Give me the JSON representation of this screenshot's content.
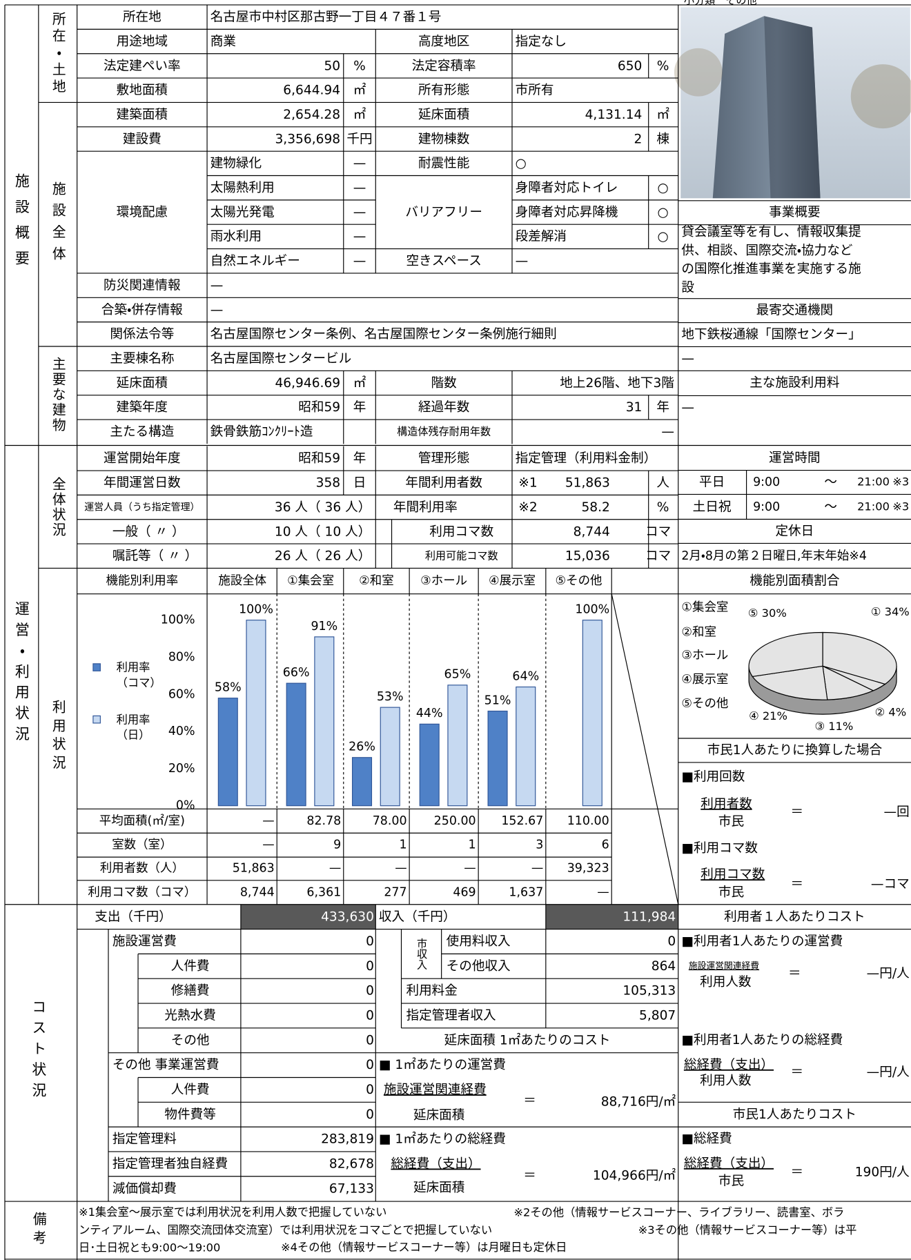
{
  "header": {
    "category": "小分類　その他"
  },
  "overview": {
    "title": "施設概要",
    "land": "所在・土地",
    "whole": "施設全体",
    "main": "主要な建物",
    "rows": [
      [
        "所在地",
        "名古屋市中村区那古野一丁目４７番１号"
      ],
      [
        "用途地域",
        "商業",
        "高度地区",
        "指定なし"
      ],
      [
        "法定建ぺい率",
        "50",
        "%",
        "法定容積率",
        "650",
        "%"
      ],
      [
        "敷地面積",
        "6,644.94",
        "㎡",
        "所有形態",
        "市所有"
      ],
      [
        "建築面積",
        "2,654.28",
        "㎡",
        "延床面積",
        "4,131.14",
        "㎡"
      ],
      [
        "建設費",
        "3,356,698",
        "千円",
        "建物棟数",
        "2",
        "棟"
      ],
      [
        "建物緑化",
        "—",
        "耐震性能",
        "○"
      ],
      [
        "太陽熱利用",
        "—",
        "身障者対応トイレ",
        "○"
      ],
      [
        "環境配慮",
        "太陽光発電",
        "—",
        "バリアフリー",
        "身障者対応昇降機",
        "○"
      ],
      [
        "雨水利用",
        "—",
        "段差解消",
        "○"
      ],
      [
        "自然エネルギー",
        "—",
        "空きスペース",
        "—"
      ],
      [
        "防災関連情報",
        "—"
      ],
      [
        "合築・併存情報",
        "—"
      ],
      [
        "関係法令等",
        "名古屋国際センター条例、名古屋国際センター条例施行細則"
      ],
      [
        "主要棟名称",
        "名古屋国際センタービル"
      ],
      [
        "延床面積",
        "46,946.69",
        "㎡",
        "階数",
        "地上26階、地下3階"
      ],
      [
        "建築年度",
        "昭和59",
        "年",
        "経過年数",
        "31",
        "年"
      ],
      [
        "主たる構造",
        "鉄骨鉄筋ｺﾝｸﾘｰﾄ造",
        "構造体残存耐用年数",
        "—"
      ]
    ],
    "right": {
      "summary_title": "事業概要",
      "summary": "貸会議室等を有し、情報収集提供、相談、国際交流・協力などの国際化推進事業を実施する施設",
      "transit_title": "最寄交通機関",
      "transit": "地下鉄桜通線「国際センター」",
      "transit_note": "—",
      "fee_title": "主な施設利用料",
      "fee": "—"
    }
  },
  "operations": {
    "title": "運営・利用状況",
    "overall": "全体状況",
    "usage": "利用状況",
    "rows": [
      [
        "運営開始年度",
        "昭和59",
        "年",
        "管理形態",
        "指定管理（利用料金制）"
      ],
      [
        "年間運営日数",
        "358",
        "日",
        "年間利用者数",
        "※1",
        "51,863",
        "人"
      ],
      [
        "運営人員（うち指定管理）",
        "36 人（ 36 人）",
        "年間利用率",
        "※2",
        "58.2",
        "%"
      ],
      [
        "一般（ 〃 ）",
        "10 人（ 10 人）",
        "利用コマ数",
        "8,744",
        "コマ"
      ],
      [
        "嘱託等（ 〃 ）",
        "26 人（ 26 人）",
        "利用可能コマ数",
        "15,036",
        "コマ"
      ]
    ],
    "table": [
      [
        "平均面積(㎡/室)",
        "—",
        "82.78",
        "78.00",
        "250.00",
        "152.67",
        "110.00"
      ],
      [
        "室数（室）",
        "—",
        "9",
        "1",
        "1",
        "3",
        "6"
      ],
      [
        "利用者数（人）",
        "51,863",
        "—",
        "—",
        "—",
        "—",
        "39,323"
      ],
      [
        "利用コマ数（コマ）",
        "8,744",
        "6,361",
        "277",
        "469",
        "1,637",
        "—"
      ]
    ],
    "hours": {
      "title": "運営時間",
      "rows": [
        [
          "平日",
          "9:00",
          "～",
          "21:00",
          "※3"
        ],
        [
          "土日祝",
          "9:00",
          "～",
          "21:00",
          "※3"
        ]
      ],
      "closed_title": "定休日",
      "closed": "2月・8月の第２日曜日,年末年始※4"
    },
    "citizen": {
      "title": "市民1人あたりに換算した場合",
      "visits": {
        "title": "■利用回数",
        "numerator": "利用者数",
        "denominator": "市民",
        "equals": "＝",
        "value": "—回"
      },
      "koma": {
        "title": "■利用コマ数",
        "numerator": "利用コマ数",
        "denominator": "市民",
        "equals": "＝",
        "value": "—コマ"
      }
    }
  },
  "chart_data": [
    {
      "type": "bar",
      "title": "機能別利用率",
      "categories": [
        "施設全体",
        "①集会室",
        "②和室",
        "③ホール",
        "④展示室",
        "⑤その他"
      ],
      "series": [
        {
          "name": "利用率（コマ）",
          "color": "#4f81c7",
          "values": [
            58,
            66,
            26,
            44,
            51,
            null
          ],
          "value_labels": [
            "58%",
            "66%",
            "26%",
            "44%",
            "51%",
            null
          ]
        },
        {
          "name": "利用率（日）",
          "color": "#c6d9f1",
          "values": [
            100,
            91,
            53,
            65,
            64,
            100
          ],
          "value_labels": [
            "100%",
            "91%",
            "53%",
            "65%",
            "64%",
            "100%"
          ]
        }
      ],
      "ylim": [
        0,
        115
      ],
      "yticks": [
        {
          "value": 0,
          "label": "0%"
        },
        {
          "value": 20,
          "label": "20%"
        },
        {
          "value": 40,
          "label": "40%"
        },
        {
          "value": 60,
          "label": "60%"
        },
        {
          "value": 80,
          "label": "80%"
        },
        {
          "value": 100,
          "label": "100%"
        }
      ],
      "grid": false
    },
    {
      "type": "pie",
      "title": "機能別面積割合",
      "categories": [
        "①集会室",
        "②和室",
        "③ホール",
        "④展示室",
        "⑤その他"
      ],
      "values": [
        34,
        4,
        11,
        21,
        30
      ],
      "value_labels": [
        "① 34%",
        "② 4%",
        "③ 11%",
        "④ 21%",
        "⑤ 30%"
      ],
      "color": "#e4e4e4"
    }
  ],
  "cost": {
    "title": "コスト状況",
    "expense": {
      "label": "支出（千円）",
      "total": "433,630",
      "items": [
        [
          "施設運営費",
          "0"
        ],
        [
          "人件費",
          "0"
        ],
        [
          "修繕費",
          "0"
        ],
        [
          "光熱水費",
          "0"
        ],
        [
          "その他",
          "0"
        ],
        [
          "その他 事業運営費",
          "0"
        ],
        [
          "人件費",
          "0"
        ],
        [
          "物件費等",
          "0"
        ],
        [
          "指定管理料",
          "283,819"
        ],
        [
          "指定管理者独自経費",
          "82,678"
        ],
        [
          "減価償却費",
          "67,133"
        ]
      ]
    },
    "income": {
      "label": "収入（千円）",
      "total": "111,984",
      "city": "市収入",
      "items": [
        [
          "使用料収入",
          "0"
        ],
        [
          "その他収入",
          "864"
        ],
        [
          "利用料金",
          "105,313"
        ],
        [
          "指定管理者収入",
          "5,807"
        ]
      ]
    },
    "area_cost": {
      "title": "延床面積 1㎡あたりのコスト",
      "op": {
        "title": "■ 1㎡あたりの運営費",
        "numerator": "施設運営関連経費",
        "denominator": "延床面積",
        "equals": "＝",
        "value": "88,716円/㎡"
      },
      "total": {
        "title": "■ 1㎡あたりの総経費",
        "numerator": "総経費（支出）",
        "denominator": "延床面積",
        "equals": "＝",
        "value": "104,966円/㎡"
      }
    },
    "user_cost": {
      "title": "利用者１人あたりコスト",
      "op": {
        "title": "■利用者1人あたりの運営費",
        "numerator": "施設運営関連経費",
        "denominator": "利用人数",
        "equals": "＝",
        "value": "—円/人"
      },
      "total": {
        "title": "■利用者1人あたりの総経費",
        "numerator": "総経費（支出）",
        "denominator": "利用人数",
        "equals": "＝",
        "value": "—円/人"
      }
    },
    "citizen_cost": {
      "title": "市民1人あたりコスト",
      "total": {
        "title": "■総経費",
        "numerator": "総経費（支出）",
        "denominator": "市民",
        "equals": "＝",
        "value": "190円/人"
      }
    }
  },
  "notes": {
    "title": "備考",
    "items": [
      "※1集会室～展示室では利用状況を利用人数で把握していない",
      "※2その他（情報サービスコーナー、ライブラリー、読書室、ボランティアルーム、国際交流団体交流室）では利用状況をコマごとで把握していない",
      "※3その他（情報サービスコーナー等）は平日･土日祝とも9:00～19:00",
      "※4その他（情報サービスコーナー等）は月曜日も定休日"
    ]
  }
}
